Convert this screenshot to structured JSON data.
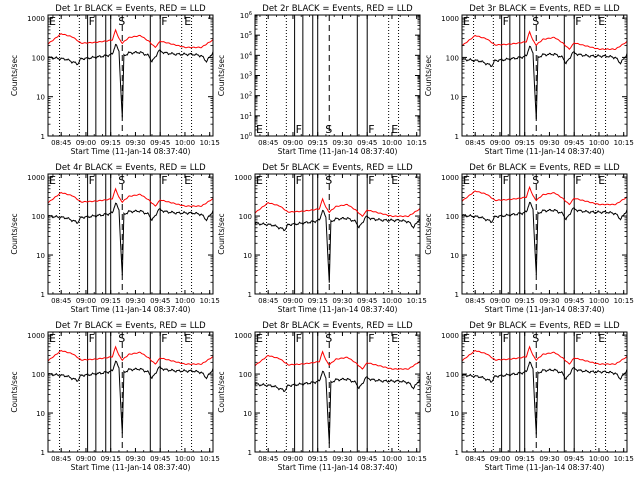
{
  "figure": {
    "panel_titles": [
      "Det 1r BLACK = Events, RED = LLD",
      "Det 2r BLACK = Events, RED = LLD",
      "Det 3r BLACK = Events, RED = LLD",
      "Det 4r BLACK = Events, RED = LLD",
      "Det 5r BLACK = Events, RED = LLD",
      "Det 6r BLACK = Events, RED = LLD",
      "Det 7r BLACK = Events, RED = LLD",
      "Det 8r BLACK = Events, RED = LLD",
      "Det 9r BLACK = Events, RED = LLD"
    ],
    "xlabel": "Start Time (11-Jan-14 08:37:40)",
    "ylabel": "Counts/sec",
    "colors": {
      "events": "#000000",
      "lld": "#ff0000"
    }
  },
  "chart_data": {
    "type": "line",
    "layout": "3x3 grid",
    "x_unit": "time of day",
    "x_start": "08:37:40",
    "xlim": [
      "08:37",
      "10:17"
    ],
    "x_ticks": [
      "08:45",
      "09:00",
      "09:15",
      "09:30",
      "09:45",
      "10:00",
      "10:15"
    ],
    "y_scale": "log",
    "y_ticks_standard": [
      "1",
      "10",
      "100",
      "1000"
    ],
    "y_ticks_det2": [
      "10^0",
      "10^1",
      "10^2",
      "10^3",
      "10^4",
      "10^5",
      "10^6"
    ],
    "ylim_standard": [
      1,
      1200
    ],
    "ylim_det2": [
      1,
      1000000
    ],
    "grid": false,
    "markers": {
      "labels": [
        "E",
        "F",
        "S",
        "F",
        "E"
      ],
      "times": [
        "08:37",
        "09:01",
        "09:19",
        "09:45",
        "09:59"
      ]
    },
    "vertical_lines": {
      "dotted": [
        "08:44",
        "08:56",
        "09:58",
        "10:04"
      ],
      "solid": [
        "09:01",
        "09:06",
        "09:12",
        "09:15",
        "09:39",
        "09:45"
      ],
      "dashed": [
        "09:22"
      ]
    },
    "events_points": [
      [
        "08:37",
        100
      ],
      [
        "08:48",
        90
      ],
      [
        "08:55",
        68
      ],
      [
        "08:57",
        92
      ],
      [
        "09:05",
        100
      ],
      [
        "09:12",
        110
      ],
      [
        "09:16",
        120
      ],
      [
        "09:18",
        220
      ],
      [
        "09:20",
        140
      ],
      [
        "09:22",
        3
      ],
      [
        "09:23",
        110
      ],
      [
        "09:26",
        130
      ],
      [
        "09:33",
        135
      ],
      [
        "09:38",
        110
      ],
      [
        "09:40",
        80
      ],
      [
        "09:42",
        100
      ],
      [
        "09:44",
        150
      ],
      [
        "09:48",
        130
      ],
      [
        "09:55",
        120
      ],
      [
        "10:05",
        120
      ],
      [
        "10:10",
        110
      ],
      [
        "10:13",
        80
      ],
      [
        "10:15",
        100
      ],
      [
        "10:17",
        140
      ]
    ],
    "lld_points": [
      [
        "08:37",
        220
      ],
      [
        "08:45",
        400
      ],
      [
        "08:52",
        330
      ],
      [
        "08:57",
        230
      ],
      [
        "09:05",
        240
      ],
      [
        "09:12",
        260
      ],
      [
        "09:16",
        280
      ],
      [
        "09:18",
        500
      ],
      [
        "09:20",
        300
      ],
      [
        "09:22",
        230
      ],
      [
        "09:26",
        320
      ],
      [
        "09:33",
        360
      ],
      [
        "09:38",
        260
      ],
      [
        "09:42",
        180
      ],
      [
        "09:45",
        260
      ],
      [
        "09:50",
        230
      ],
      [
        "10:00",
        180
      ],
      [
        "10:10",
        180
      ],
      [
        "10:17",
        280
      ]
    ]
  }
}
